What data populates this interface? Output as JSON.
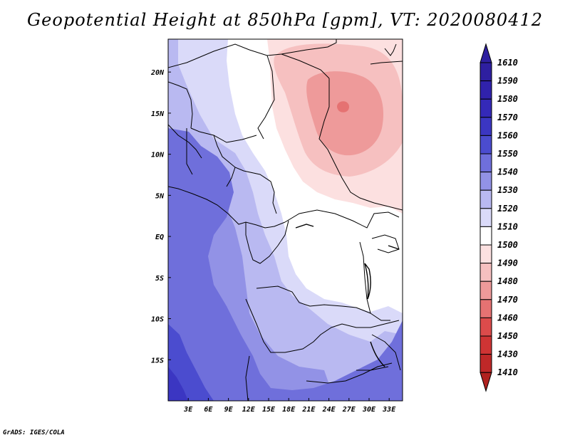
{
  "title": "Geopotential Height at 850hPa [gpm], VT: 2020080412",
  "credit": "GrADS: IGES/COLA",
  "map": {
    "lat_labels": [
      "20N",
      "15N",
      "10N",
      "5N",
      "EQ",
      "5S",
      "10S",
      "15S"
    ],
    "lon_labels": [
      "3E",
      "6E",
      "9E",
      "12E",
      "15E",
      "18E",
      "21E",
      "24E",
      "27E",
      "30E",
      "33E"
    ],
    "lat_range": [
      -20,
      24
    ],
    "lon_range": [
      0,
      35
    ]
  },
  "colorbar": {
    "levels": [
      "1610",
      "1590",
      "1580",
      "1570",
      "1560",
      "1550",
      "1540",
      "1530",
      "1520",
      "1510",
      "1500",
      "1490",
      "1480",
      "1470",
      "1460",
      "1450",
      "1430",
      "1410"
    ],
    "colors": {
      "c1600": "#2e1fa0",
      "c1590": "#3022ac",
      "c1580": "#3429b8",
      "c1570": "#3b36c2",
      "c1560": "#4b4ccf",
      "c1550": "#6f6fdb",
      "c1540": "#9292e6",
      "c1530": "#b9b9f1",
      "c1520": "#dadaf9",
      "c1510": "#ffffff",
      "c1500": "#fce0e0",
      "c1490": "#f6c0c0",
      "c1480": "#ee9a9a",
      "c1470": "#e57272",
      "c1460": "#dc4b4b",
      "c1450": "#cf3434",
      "c1430": "#bf2828",
      "c1410": "#b0221f"
    }
  }
}
